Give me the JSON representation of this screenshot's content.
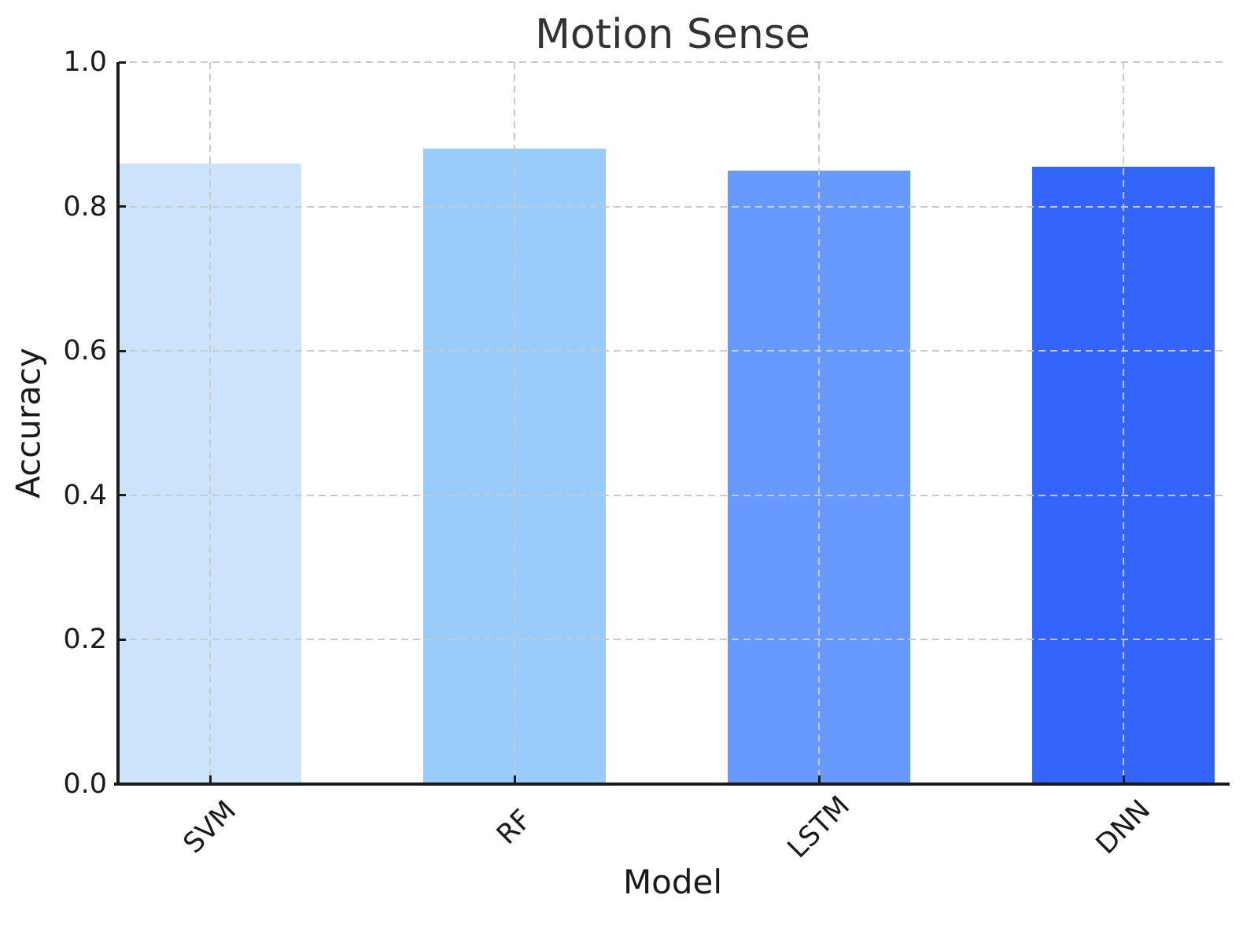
{
  "chart_data": {
    "type": "bar",
    "title": "Motion Sense",
    "xlabel": "Model",
    "ylabel": "Accuracy",
    "categories": [
      "SVM",
      "RF",
      "LSTM",
      "DNN"
    ],
    "values": [
      0.86,
      0.88,
      0.85,
      0.855
    ],
    "ylim": [
      0.0,
      1.0
    ],
    "yticks": [
      0.0,
      0.2,
      0.4,
      0.6,
      0.8,
      1.0
    ],
    "ytick_labels": [
      "0.0",
      "0.2",
      "0.4",
      "0.6",
      "0.8",
      "1.0"
    ],
    "bar_colors": [
      "#cce4fb",
      "#99cbfb",
      "#679afc",
      "#3364fb"
    ],
    "grid": "dashed, drawn above bars",
    "grid_color": "#c9c9c9",
    "axis_color": "#1a1a1a",
    "title_color": "#333333",
    "legend": "none"
  }
}
